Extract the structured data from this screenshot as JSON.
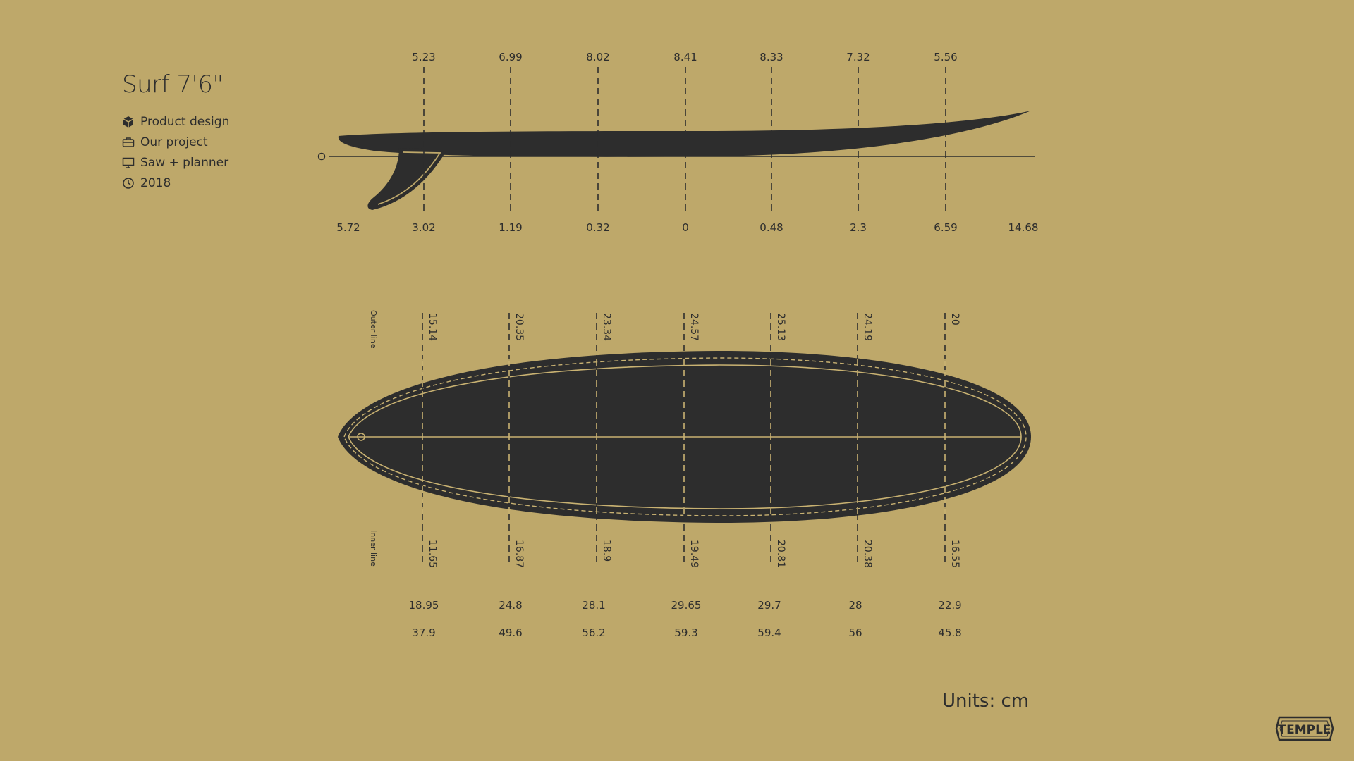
{
  "title": "Surf 7'6\"",
  "meta": [
    {
      "icon": "cube-icon",
      "label": "Product design"
    },
    {
      "icon": "briefcase-icon",
      "label": "Our project"
    },
    {
      "icon": "monitor-icon",
      "label": "Saw + planner"
    },
    {
      "icon": "clock-icon",
      "label": "2018"
    }
  ],
  "profile": {
    "zero_label": "0",
    "top_values": [
      "5.23",
      "6.99",
      "8.02",
      "8.41",
      "8.33",
      "7.32",
      "5.56"
    ],
    "bottom_values": [
      "5.72",
      "3.02",
      "1.19",
      "0.32",
      "0",
      "0.48",
      "2.3",
      "6.59",
      "14.68"
    ]
  },
  "outline": {
    "outer_label": "Outer line",
    "inner_label": "Inner line",
    "outer_values": [
      "15.14",
      "20.35",
      "23.34",
      "24.57",
      "25.13",
      "24.19",
      "20"
    ],
    "inner_values": [
      "11.65",
      "16.87",
      "18.9",
      "19.49",
      "20.81",
      "20.38",
      "16.55"
    ],
    "row1": [
      "18.95",
      "24.8",
      "28.1",
      "29.65",
      "29.7",
      "28",
      "22.9"
    ],
    "row2": [
      "37.9",
      "49.6",
      "56.2",
      "59.3",
      "59.4",
      "56",
      "45.8"
    ]
  },
  "units": "Units: cm",
  "logo_text": "TEMPLE",
  "colors": {
    "background": "#bea86a",
    "ink": "#2d2d2d",
    "line": "#c9b272"
  }
}
